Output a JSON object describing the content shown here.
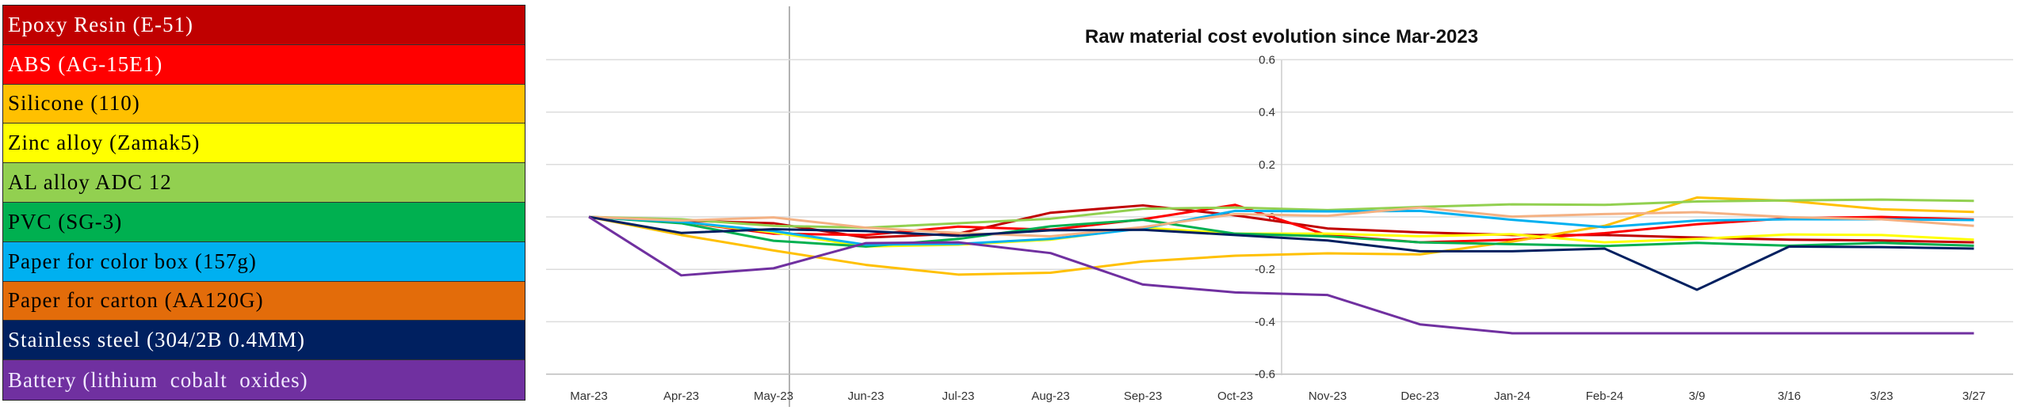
{
  "legend": [
    {
      "label": "Epoxy Resin (E-51)",
      "bg": "#C00000",
      "fg": "#FFFFFF"
    },
    {
      "label": "ABS (AG-15E1)",
      "bg": "#FF0000",
      "fg": "#FFFFFF"
    },
    {
      "label": "Silicone (110)",
      "bg": "#FFC000",
      "fg": "#000000"
    },
    {
      "label": "Zinc alloy (Zamak5)",
      "bg": "#FFFF00",
      "fg": "#000000"
    },
    {
      "label": "AL alloy ADC 12",
      "bg": "#92D050",
      "fg": "#000000"
    },
    {
      "label": "PVC (SG-3)",
      "bg": "#00B050",
      "fg": "#000000"
    },
    {
      "label": "Paper for color box (157g)",
      "bg": "#00B0F0",
      "fg": "#000000"
    },
    {
      "label": "Paper for carton (AA120G)",
      "bg": "#E36C0A",
      "fg": "#000000"
    },
    {
      "label": "Stainless steel (304/2B 0.4MM)",
      "bg": "#002060",
      "fg": "#FFFFFF"
    },
    {
      "label": "Battery (lithium  cobalt  oxides)",
      "bg": "#7030A0",
      "fg": "#F0E8FF"
    }
  ],
  "chart_data": {
    "type": "line",
    "title": "Raw material cost evolution since Mar-2023",
    "xlabel": "",
    "ylabel": "",
    "ylim": [
      -0.6,
      0.6
    ],
    "yticks": [
      "0.6",
      "0.4",
      "0.2",
      "0",
      "-0.2",
      "-0.4",
      "-0.6"
    ],
    "grid": true,
    "categories": [
      "Mar-23",
      "Apr-23",
      "May-23",
      "Jun-23",
      "Jul-23",
      "Aug-23",
      "Sep-23",
      "Oct-23",
      "Nov-23",
      "Dec-23",
      "Jan-24",
      "Feb-24",
      "3/9",
      "3/16",
      "3/23",
      "3/27"
    ],
    "series": [
      {
        "legend_index": 0,
        "color": "#C00000",
        "values": [
          0,
          -0.014,
          -0.024,
          -0.079,
          -0.064,
          0.016,
          0.044,
          0.006,
          -0.044,
          -0.059,
          -0.069,
          -0.069,
          -0.079,
          -0.087,
          -0.09,
          -0.097
        ]
      },
      {
        "legend_index": 1,
        "color": "#FF0000",
        "values": [
          0,
          -0.019,
          -0.064,
          -0.069,
          -0.037,
          -0.049,
          -0.009,
          0.046,
          -0.07,
          -0.097,
          -0.087,
          -0.062,
          -0.028,
          -0.005,
          0.0,
          -0.01
        ]
      },
      {
        "legend_index": 2,
        "color": "#FFC000",
        "values": [
          0,
          -0.069,
          -0.128,
          -0.183,
          -0.22,
          -0.213,
          -0.17,
          -0.148,
          -0.139,
          -0.143,
          -0.094,
          -0.034,
          0.074,
          0.061,
          0.029,
          0.019
        ]
      },
      {
        "legend_index": 3,
        "color": "#FFFF00",
        "values": [
          0,
          -0.019,
          -0.059,
          -0.113,
          -0.106,
          -0.087,
          -0.041,
          -0.064,
          -0.064,
          -0.074,
          -0.066,
          -0.097,
          -0.084,
          -0.067,
          -0.069,
          -0.087
        ]
      },
      {
        "legend_index": 4,
        "color": "#92D050",
        "values": [
          0,
          -0.009,
          -0.034,
          -0.041,
          -0.024,
          -0.007,
          0.031,
          0.036,
          0.026,
          0.038,
          0.048,
          0.046,
          0.059,
          0.063,
          0.066,
          0.061
        ]
      },
      {
        "legend_index": 5,
        "color": "#00B050",
        "values": [
          0,
          -0.024,
          -0.091,
          -0.113,
          -0.084,
          -0.036,
          -0.011,
          -0.064,
          -0.074,
          -0.097,
          -0.104,
          -0.111,
          -0.099,
          -0.11,
          -0.099,
          -0.11
        ]
      },
      {
        "legend_index": 6,
        "color": "#00B0F0",
        "values": [
          0,
          -0.019,
          -0.054,
          -0.106,
          -0.103,
          -0.084,
          -0.044,
          0.023,
          0.021,
          0.023,
          -0.011,
          -0.039,
          -0.014,
          -0.009,
          -0.009,
          -0.012
        ]
      },
      {
        "legend_index": 7,
        "color": "#F4B183",
        "values": [
          0,
          -0.014,
          -0.002,
          -0.041,
          -0.061,
          -0.074,
          -0.039,
          0.011,
          0.004,
          0.036,
          0.001,
          0.011,
          0.018,
          -0.001,
          -0.009,
          -0.034
        ]
      },
      {
        "legend_index": 8,
        "color": "#002060",
        "values": [
          0,
          -0.061,
          -0.047,
          -0.054,
          -0.072,
          -0.051,
          -0.049,
          -0.069,
          -0.09,
          -0.131,
          -0.131,
          -0.121,
          -0.278,
          -0.113,
          -0.115,
          -0.121
        ]
      },
      {
        "legend_index": 9,
        "color": "#7030A0",
        "values": [
          0,
          -0.223,
          -0.196,
          -0.1,
          -0.097,
          -0.138,
          -0.258,
          -0.288,
          -0.298,
          -0.41,
          -0.444,
          -0.444,
          -0.444,
          -0.444,
          -0.444,
          -0.444
        ]
      }
    ]
  }
}
